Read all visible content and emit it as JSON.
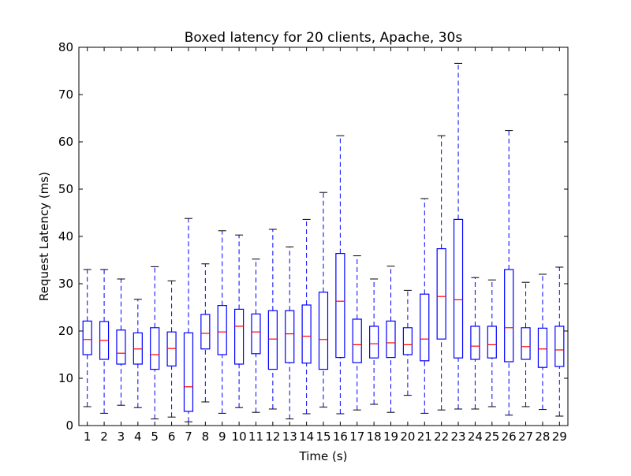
{
  "chart_data": {
    "type": "box",
    "title": "Boxed latency for 20 clients, Apache, 30s",
    "xlabel": "Time (s)",
    "ylabel": "Request Latency (ms)",
    "ylim": [
      0,
      80
    ],
    "yticks": [
      0,
      10,
      20,
      30,
      40,
      50,
      60,
      70,
      80
    ],
    "grid": false,
    "categories": [
      "1",
      "2",
      "3",
      "4",
      "5",
      "6",
      "7",
      "8",
      "9",
      "10",
      "11",
      "12",
      "13",
      "14",
      "15",
      "16",
      "17",
      "18",
      "19",
      "20",
      "21",
      "22",
      "23",
      "24",
      "25",
      "26",
      "27",
      "28",
      "29"
    ],
    "boxes": [
      {
        "min": 4.0,
        "q1": 15.0,
        "median": 18.2,
        "q3": 22.1,
        "max": 33.0
      },
      {
        "min": 2.6,
        "q1": 14.0,
        "median": 18.0,
        "q3": 22.0,
        "max": 33.0
      },
      {
        "min": 4.3,
        "q1": 13.0,
        "median": 15.3,
        "q3": 20.2,
        "max": 31.0
      },
      {
        "min": 3.8,
        "q1": 13.0,
        "median": 16.2,
        "q3": 19.6,
        "max": 26.7
      },
      {
        "min": 1.4,
        "q1": 11.9,
        "median": 15.0,
        "q3": 20.7,
        "max": 33.6
      },
      {
        "min": 1.8,
        "q1": 12.6,
        "median": 16.3,
        "q3": 19.8,
        "max": 30.6
      },
      {
        "min": 0.8,
        "q1": 3.0,
        "median": 8.2,
        "q3": 19.6,
        "max": 43.8
      },
      {
        "min": 5.0,
        "q1": 16.2,
        "median": 19.5,
        "q3": 23.5,
        "max": 34.2
      },
      {
        "min": 2.6,
        "q1": 15.0,
        "median": 19.8,
        "q3": 25.4,
        "max": 41.2
      },
      {
        "min": 3.8,
        "q1": 13.0,
        "median": 21.0,
        "q3": 24.6,
        "max": 40.3
      },
      {
        "min": 2.8,
        "q1": 15.2,
        "median": 19.8,
        "q3": 23.6,
        "max": 35.2
      },
      {
        "min": 3.5,
        "q1": 11.9,
        "median": 18.3,
        "q3": 24.3,
        "max": 41.5
      },
      {
        "min": 1.4,
        "q1": 13.3,
        "median": 19.4,
        "q3": 24.3,
        "max": 37.8
      },
      {
        "min": 2.5,
        "q1": 13.2,
        "median": 18.9,
        "q3": 25.5,
        "max": 43.6
      },
      {
        "min": 3.9,
        "q1": 11.9,
        "median": 18.2,
        "q3": 28.2,
        "max": 49.3
      },
      {
        "min": 2.5,
        "q1": 14.4,
        "median": 26.3,
        "q3": 36.4,
        "max": 61.3
      },
      {
        "min": 3.3,
        "q1": 13.3,
        "median": 17.1,
        "q3": 22.5,
        "max": 35.9
      },
      {
        "min": 4.5,
        "q1": 14.3,
        "median": 17.3,
        "q3": 21.0,
        "max": 31.0
      },
      {
        "min": 2.8,
        "q1": 14.4,
        "median": 17.5,
        "q3": 22.1,
        "max": 33.7
      },
      {
        "min": 6.4,
        "q1": 15.0,
        "median": 17.1,
        "q3": 20.7,
        "max": 28.6
      },
      {
        "min": 2.6,
        "q1": 13.7,
        "median": 18.3,
        "q3": 27.8,
        "max": 48.0
      },
      {
        "min": 3.3,
        "q1": 18.3,
        "median": 27.3,
        "q3": 37.4,
        "max": 61.3
      },
      {
        "min": 3.5,
        "q1": 14.3,
        "median": 26.6,
        "q3": 43.6,
        "max": 76.6
      },
      {
        "min": 3.5,
        "q1": 14.0,
        "median": 16.8,
        "q3": 21.0,
        "max": 31.3
      },
      {
        "min": 4.0,
        "q1": 14.3,
        "median": 17.1,
        "q3": 21.0,
        "max": 30.8
      },
      {
        "min": 2.2,
        "q1": 13.5,
        "median": 20.7,
        "q3": 33.0,
        "max": 62.4
      },
      {
        "min": 4.0,
        "q1": 14.0,
        "median": 16.7,
        "q3": 20.7,
        "max": 30.3
      },
      {
        "min": 3.4,
        "q1": 12.3,
        "median": 16.2,
        "q3": 20.6,
        "max": 32.0
      },
      {
        "min": 2.0,
        "q1": 12.5,
        "median": 16.0,
        "q3": 21.0,
        "max": 33.5
      }
    ],
    "colors": {
      "box": "#0000ff",
      "whisker": "#0000ff",
      "median": "#ff0000",
      "axes": "#000000",
      "background": "#ffffff"
    }
  }
}
